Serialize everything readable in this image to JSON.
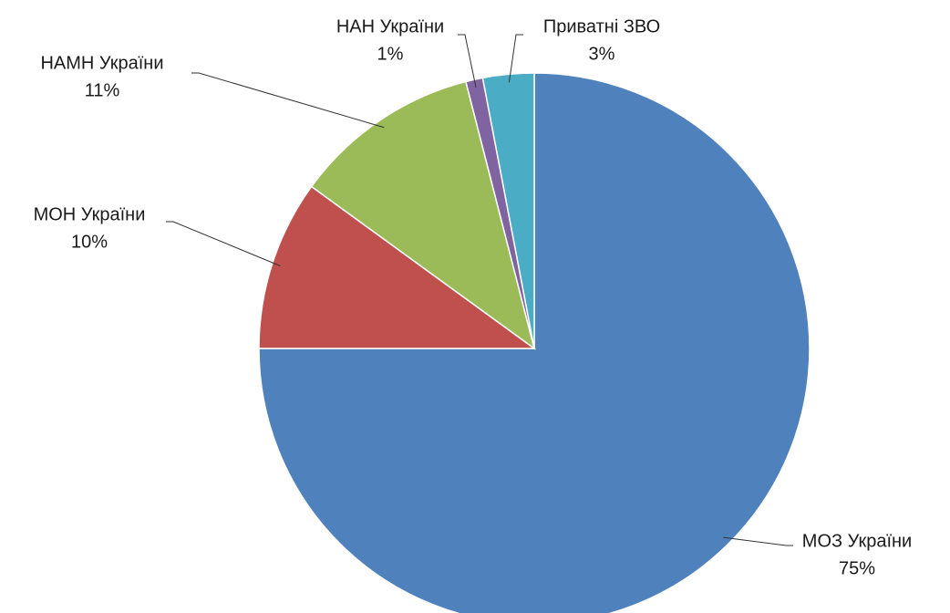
{
  "chart_data": {
    "type": "pie",
    "categories": [
      "МОЗ України",
      "МОН України",
      "НАМН України",
      "НАН України",
      "Приватні ЗВО"
    ],
    "values": [
      75,
      10,
      11,
      1,
      3
    ],
    "value_labels": [
      "75%",
      "10%",
      "11%",
      "1%",
      "3%"
    ],
    "colors": [
      "#4f81bd",
      "#c0504d",
      "#9bbb59",
      "#8064a2",
      "#4bacc6"
    ]
  }
}
